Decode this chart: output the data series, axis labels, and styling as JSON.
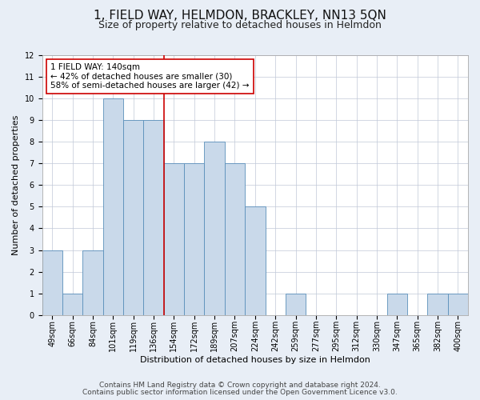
{
  "title": "1, FIELD WAY, HELMDON, BRACKLEY, NN13 5QN",
  "subtitle": "Size of property relative to detached houses in Helmdon",
  "xlabel": "Distribution of detached houses by size in Helmdon",
  "ylabel": "Number of detached properties",
  "categories": [
    "49sqm",
    "66sqm",
    "84sqm",
    "101sqm",
    "119sqm",
    "136sqm",
    "154sqm",
    "172sqm",
    "189sqm",
    "207sqm",
    "224sqm",
    "242sqm",
    "259sqm",
    "277sqm",
    "295sqm",
    "312sqm",
    "330sqm",
    "347sqm",
    "365sqm",
    "382sqm",
    "400sqm"
  ],
  "bar_values": [
    3,
    1,
    3,
    10,
    9,
    9,
    7,
    7,
    8,
    7,
    5,
    0,
    1,
    0,
    0,
    0,
    0,
    1,
    0,
    1,
    1
  ],
  "bar_color": "#c9d9ea",
  "bar_edgecolor": "#5a8fba",
  "red_line_x": 5.5,
  "red_line_color": "#cc0000",
  "annotation_text": "1 FIELD WAY: 140sqm\n← 42% of detached houses are smaller (30)\n58% of semi-detached houses are larger (42) →",
  "annotation_box_edgecolor": "#cc0000",
  "ylim": [
    0,
    12
  ],
  "yticks": [
    0,
    1,
    2,
    3,
    4,
    5,
    6,
    7,
    8,
    9,
    10,
    11,
    12
  ],
  "footnote1": "Contains HM Land Registry data © Crown copyright and database right 2024.",
  "footnote2": "Contains public sector information licensed under the Open Government Licence v3.0.",
  "bg_color": "#e8eef6",
  "plot_bg_color": "#ffffff",
  "grid_color": "#c0c8d8",
  "title_fontsize": 11,
  "subtitle_fontsize": 9,
  "axis_label_fontsize": 8,
  "tick_fontsize": 7,
  "annotation_fontsize": 7.5,
  "footnote_fontsize": 6.5
}
